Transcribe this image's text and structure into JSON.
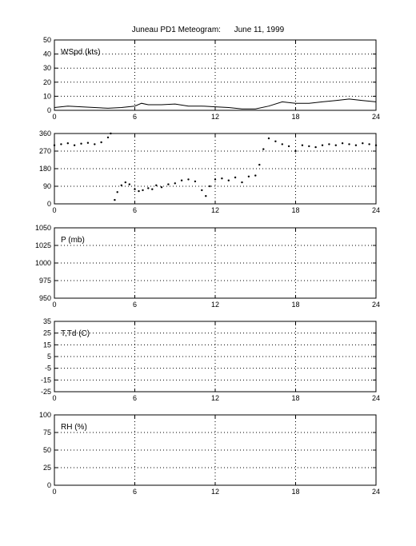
{
  "figure": {
    "title": "Juneau PD1 Meteogram:      June 11, 1999"
  },
  "chart_data": [
    {
      "type": "line",
      "label": "WSpd (kts)",
      "ylim": [
        0,
        50
      ],
      "yticks": [
        "0",
        "10",
        "20",
        "30",
        "40",
        "50"
      ],
      "xlim": [
        0,
        24
      ],
      "xticks": [
        "0",
        "6",
        "12",
        "18",
        "24"
      ],
      "grid": true,
      "series": [
        {
          "x": [
            0,
            1,
            2,
            3,
            4,
            5,
            6,
            6.5,
            7,
            8,
            9,
            10,
            11,
            12,
            13,
            14,
            15,
            16,
            17,
            18,
            19,
            20,
            21,
            22,
            23,
            24
          ],
          "values": [
            2,
            3,
            2.5,
            2,
            1.5,
            2,
            3,
            5,
            4,
            4,
            4.5,
            3,
            3,
            2.5,
            2,
            1,
            1,
            3,
            6,
            5,
            5,
            6,
            7,
            8,
            7,
            6
          ]
        }
      ]
    },
    {
      "type": "scatter",
      "label": "",
      "ylim": [
        0,
        360
      ],
      "yticks": [
        "0",
        "90",
        "180",
        "270",
        "360"
      ],
      "xlim": [
        0,
        24
      ],
      "xticks": [
        "0",
        "6",
        "12",
        "18",
        "24"
      ],
      "grid": true,
      "series": [
        {
          "x": [
            0,
            0.5,
            1,
            1.5,
            2,
            2.5,
            3,
            3.5,
            4,
            4.2,
            4.5,
            4.7,
            5,
            5.3,
            5.6,
            6,
            6.3,
            6.6,
            7,
            7.3,
            7.6,
            8,
            8.5,
            9,
            9.5,
            10,
            10.5,
            11,
            11.3,
            11.6,
            12,
            12.5,
            13,
            13.5,
            14,
            14.5,
            15,
            15.3,
            15.6,
            16,
            16.5,
            17,
            17.5,
            18,
            18.5,
            19,
            19.5,
            20,
            20.5,
            21,
            21.5,
            22,
            22.5,
            23,
            23.5,
            24
          ],
          "values": [
            300,
            305,
            310,
            300,
            308,
            312,
            305,
            315,
            340,
            360,
            20,
            60,
            95,
            110,
            100,
            75,
            65,
            70,
            80,
            75,
            95,
            85,
            100,
            105,
            120,
            125,
            115,
            70,
            40,
            90,
            125,
            130,
            120,
            135,
            110,
            140,
            145,
            200,
            280,
            335,
            320,
            305,
            295,
            270,
            300,
            295,
            290,
            300,
            305,
            300,
            310,
            305,
            300,
            310,
            305,
            300
          ]
        }
      ]
    },
    {
      "type": "line",
      "label": "P (mb)",
      "ylim": [
        950,
        1050
      ],
      "yticks": [
        "950",
        "975",
        "1000",
        "1025",
        "1050"
      ],
      "xlim": [
        0,
        24
      ],
      "xticks": [
        "0",
        "6",
        "12",
        "18",
        "24"
      ],
      "grid": true,
      "series": []
    },
    {
      "type": "line",
      "label": "T,Td (C)",
      "ylim": [
        -25,
        35
      ],
      "yticks": [
        "-25",
        "-15",
        "-5",
        "5",
        "15",
        "25",
        "35"
      ],
      "xlim": [
        0,
        24
      ],
      "xticks": [
        "0",
        "6",
        "12",
        "18",
        "24"
      ],
      "grid": true,
      "series": []
    },
    {
      "type": "line",
      "label": "RH (%)",
      "ylim": [
        0,
        100
      ],
      "yticks": [
        "0",
        "25",
        "50",
        "75",
        "100"
      ],
      "xlim": [
        0,
        24
      ],
      "xticks": [
        "0",
        "6",
        "12",
        "18",
        "24"
      ],
      "grid": true,
      "series": []
    }
  ]
}
